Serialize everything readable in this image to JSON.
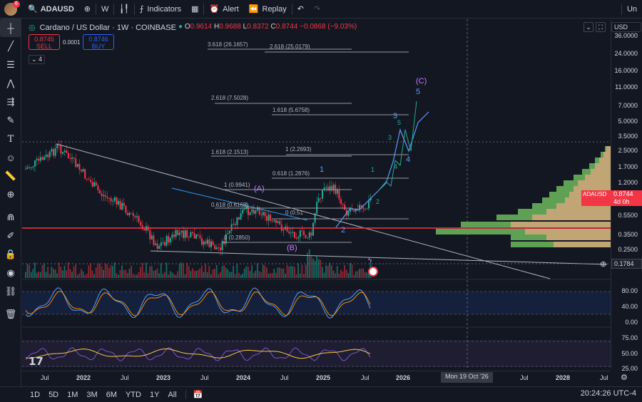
{
  "topbar": {
    "notification_count": "6",
    "symbol": "ADAUSD",
    "interval": "W",
    "indicators_label": "Indicators",
    "alert_label": "Alert",
    "replay_label": "Replay",
    "unnamed_label": "Un"
  },
  "legend": {
    "title": "Cardano / US Dollar · 1W · COINBASE",
    "o_label": "O",
    "o_value": "0.9614",
    "h_label": "H",
    "h_value": "0.9688",
    "l_label": "L",
    "l_value": "0.8372",
    "c_label": "C",
    "c_value": "0.8744",
    "change": "−0.0868 (−9.03%)",
    "sell_price": "0.8745",
    "sell_label": "SELL",
    "spread": "0.0001",
    "buy_price": "0.8746",
    "buy_label": "BUY",
    "indicators_collapsed": "4"
  },
  "price_scale": {
    "currency": "USD",
    "ticks": [
      "36.0000",
      "24.0000",
      "16.0000",
      "11.0000",
      "7.0000",
      "5.0000",
      "3.5000",
      "2.5000",
      "1.7000",
      "1.2000",
      "0.5500",
      "0.3500",
      "0.2500"
    ],
    "current_symbol": "ADAUSD",
    "current_price": "0.8744",
    "countdown": "4d 0h",
    "crosshair_price": "0.1784"
  },
  "osc1_ticks": [
    "80.00",
    "40.00",
    "0.00"
  ],
  "osc2_ticks": [
    "75.00",
    "50.00",
    "25.00"
  ],
  "fib_labels": [
    "3.618 (26.1657)",
    "2.618 (25.0179)",
    "2.618 (7.5028)",
    "1.618 (5.6758)",
    "1.618 (2.1513)",
    "1 (2.2693)",
    "0.618 (1.2876)",
    "1 (0.9941)",
    "0.618 (0.6168)",
    "0 (0.51",
    "0 (0.2850)"
  ],
  "waves": {
    "A": "(A)",
    "B": "(B)",
    "C": "(C)",
    "w1": "1",
    "w2": "2",
    "w3": "3",
    "w4": "4",
    "w5": "5",
    "s1": "1",
    "s2": "2",
    "s3": "3",
    "s4": "4",
    "s5": "5"
  },
  "time_axis": {
    "ticks": [
      "Jul",
      "2022",
      "Jul",
      "2023",
      "Jul",
      "2024",
      "Jul",
      "2025",
      "Jul",
      "2026",
      "Jul",
      "2028",
      "Jul"
    ],
    "crosshair_date": "Mon 19 Oct '26"
  },
  "bottombar": {
    "ranges": [
      "1D",
      "5D",
      "1M",
      "3M",
      "6M",
      "YTD",
      "1Y",
      "All"
    ],
    "clock": "20:24:26 UTC-4"
  },
  "colors": {
    "background": "#131722",
    "down": "#f23645",
    "up": "#22ab94",
    "wave_blue": "#5b9cf6",
    "wave_purple": "#c77dff"
  }
}
